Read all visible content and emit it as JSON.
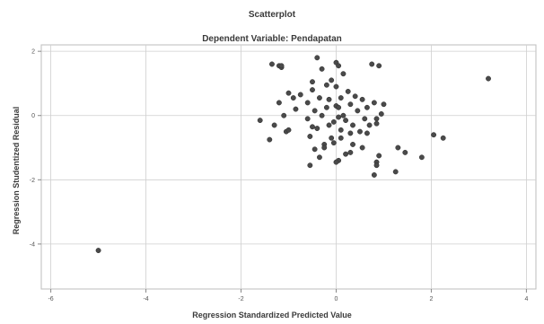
{
  "chart_data": {
    "type": "scatter",
    "title": "Scatterplot",
    "subtitle": "Dependent Variable: Pendapatan",
    "xlabel": "Regression Standardized Predicted Value",
    "ylabel": "Regression Studentized Residual",
    "xlim": [
      -6.2,
      4.2
    ],
    "ylim": [
      -5.4,
      2.2
    ],
    "xticks": [
      -6,
      -4,
      -2,
      0,
      2,
      4
    ],
    "yticks": [
      -4,
      -2,
      0,
      2
    ],
    "grid": true,
    "marker_color": "#4a4a4a",
    "grid_color": "#cfcfcf",
    "x": [
      -5.0,
      -1.6,
      -1.4,
      -1.35,
      -1.3,
      -1.2,
      -1.15,
      -1.2,
      -1.15,
      -1.1,
      -1.05,
      -1.0,
      -1.0,
      -0.9,
      -0.85,
      -0.75,
      -0.6,
      -0.6,
      -0.5,
      -0.55,
      -0.5,
      -0.45,
      -0.4,
      -0.4,
      -0.35,
      -0.3,
      -0.25,
      -0.2,
      -0.2,
      -0.15,
      -0.15,
      -0.1,
      -0.1,
      -0.05,
      0.0,
      0.0,
      0.0,
      0.05,
      0.05,
      0.1,
      0.1,
      0.15,
      0.15,
      0.2,
      0.25,
      0.3,
      0.3,
      0.35,
      0.4,
      0.45,
      0.5,
      0.55,
      0.6,
      0.65,
      0.7,
      0.75,
      0.8,
      0.85,
      0.9,
      0.95,
      1.0,
      -0.3,
      -0.05,
      0.1,
      -0.45,
      -0.25,
      0.05,
      0.2,
      0.35,
      0.65,
      0.85,
      -0.55,
      -0.35,
      0.0,
      0.3,
      0.55,
      0.85,
      1.3,
      1.45,
      1.8,
      2.05,
      2.25,
      3.2,
      0.8,
      0.9,
      1.25,
      0.05,
      -0.5,
      0.85
    ],
    "y": [
      -4.2,
      -0.15,
      -0.75,
      1.6,
      -0.3,
      1.55,
      1.5,
      0.4,
      1.55,
      0.0,
      -0.5,
      0.7,
      -0.45,
      0.55,
      0.2,
      0.65,
      0.4,
      -0.1,
      0.8,
      -0.65,
      1.05,
      0.15,
      1.8,
      -0.4,
      0.55,
      1.45,
      -0.9,
      0.95,
      0.25,
      -0.3,
      0.5,
      -0.7,
      1.1,
      -0.2,
      1.65,
      0.9,
      0.3,
      -0.05,
      1.55,
      0.55,
      -0.45,
      0.0,
      1.3,
      -0.15,
      0.75,
      0.35,
      -0.55,
      -0.3,
      0.6,
      0.15,
      -0.5,
      0.5,
      -0.1,
      0.25,
      -0.3,
      1.6,
      0.4,
      -0.1,
      1.55,
      0.05,
      0.35,
      0.0,
      -0.85,
      -0.7,
      -1.05,
      -1.0,
      -1.4,
      -1.2,
      -0.9,
      -0.55,
      -0.25,
      -1.55,
      -1.3,
      -1.45,
      -1.15,
      -1.0,
      -1.45,
      -1.0,
      -1.15,
      -1.3,
      -0.6,
      -0.7,
      1.15,
      -1.85,
      -1.25,
      -1.75,
      0.25,
      -0.35,
      -1.55
    ]
  }
}
